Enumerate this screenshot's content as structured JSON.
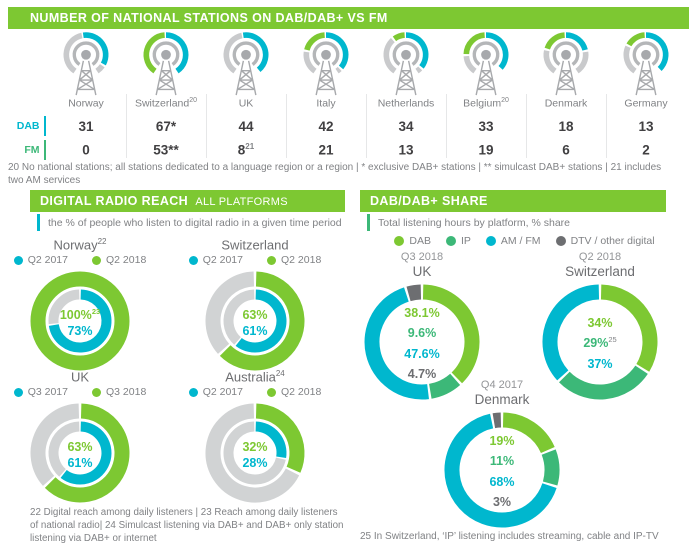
{
  "palette": {
    "green": "#7dc832",
    "green_dark": "#3cb878",
    "teal": "#00b7ce",
    "gray_ring": "#d1d3d4",
    "gray_arc": "#c9cacc",
    "gray_dark": "#6d6e71",
    "tower_gray": "#a7a9ac",
    "text_gray": "#808285",
    "text_dark": "#414042"
  },
  "stations": {
    "title": "NUMBER OF NATIONAL STATIONS ON DAB/DAB+ VS FM",
    "row_labels": {
      "dab": "DAB",
      "fm": "FM"
    },
    "countries": [
      {
        "name": "Norway",
        "sup": "",
        "dab": "31",
        "fm": "0",
        "fm_sup": "",
        "arcs": [
          [
            "gray_arc",
            214,
            348
          ],
          [
            "teal",
            352,
            118
          ],
          [
            "gray_arc",
            124,
            146
          ]
        ]
      },
      {
        "name": "Switzerland",
        "sup": "20",
        "dab": "67*",
        "fm": "53**",
        "fm_sup": "",
        "arcs": [
          [
            "green",
            214,
            356
          ],
          [
            "teal",
            0,
            146
          ]
        ]
      },
      {
        "name": "UK",
        "sup": "",
        "dab": "44",
        "fm": "8",
        "fm_sup": "21",
        "arcs": [
          [
            "gray_arc",
            214,
            348
          ],
          [
            "teal",
            352,
            140
          ]
        ]
      },
      {
        "name": "Italy",
        "sup": "",
        "dab": "42",
        "fm": "21",
        "fm_sup": "",
        "arcs": [
          [
            "gray_arc",
            214,
            278
          ],
          [
            "green",
            284,
            356
          ],
          [
            "teal",
            0,
            130
          ],
          [
            "gray_arc",
            136,
            146
          ]
        ]
      },
      {
        "name": "Netherlands",
        "sup": "",
        "dab": "34",
        "fm": "13",
        "fm_sup": "",
        "arcs": [
          [
            "gray_arc",
            214,
            318
          ],
          [
            "green",
            324,
            356
          ],
          [
            "teal",
            0,
            128
          ],
          [
            "gray_arc",
            134,
            146
          ]
        ]
      },
      {
        "name": "Belgium",
        "sup": "20",
        "dab": "33",
        "fm": "19",
        "fm_sup": "",
        "arcs": [
          [
            "gray_arc",
            214,
            266
          ],
          [
            "green",
            272,
            356
          ],
          [
            "teal",
            0,
            132
          ]
        ]
      },
      {
        "name": "Denmark",
        "sup": "",
        "dab": "18",
        "fm": "6",
        "fm_sup": "",
        "arcs": [
          [
            "gray_arc",
            214,
            282
          ],
          [
            "green",
            288,
            356
          ],
          [
            "teal",
            0,
            76
          ],
          [
            "gray_arc",
            82,
            146
          ]
        ]
      },
      {
        "name": "Germany",
        "sup": "",
        "dab": "13",
        "fm": "2",
        "fm_sup": "",
        "arcs": [
          [
            "gray_arc",
            214,
            294
          ],
          [
            "green",
            300,
            356
          ],
          [
            "teal",
            0,
            136
          ]
        ]
      }
    ],
    "footnote": "20 No national stations; all stations dedicated to a language region or a region | * exclusive DAB+ stations | ** simulcast DAB+ stations | 21 includes two AM services"
  },
  "reach": {
    "title_strong": "DIGITAL RADIO REACH",
    "title_light": "ALL PLATFORMS",
    "subtitle": "the % of people who listen to digital radio in a given time period",
    "charts": [
      {
        "country": "Norway",
        "sup": "22",
        "legend": [
          "Q2 2017",
          "Q2 2018"
        ],
        "curr": {
          "label": "100%",
          "sup": "23",
          "value": 100
        },
        "prev": {
          "label": "73%",
          "value": 73
        }
      },
      {
        "country": "Switzerland",
        "sup": "",
        "legend": [
          "Q2 2017",
          "Q2 2018"
        ],
        "curr": {
          "label": "63%",
          "sup": "",
          "value": 63
        },
        "prev": {
          "label": "61%",
          "value": 61
        }
      },
      {
        "country": "UK",
        "sup": "",
        "legend": [
          "Q3 2017",
          "Q3 2018"
        ],
        "curr": {
          "label": "63%",
          "sup": "",
          "value": 63
        },
        "prev": {
          "label": "61%",
          "value": 61
        }
      },
      {
        "country": "Australia",
        "sup": "24",
        "legend": [
          "Q2 2017",
          "Q2 2018"
        ],
        "curr": {
          "label": "32%",
          "sup": "",
          "value": 32
        },
        "prev": {
          "label": "28%",
          "value": 28
        }
      }
    ],
    "footnote": "22 Digital reach among daily listeners | 23 Reach among daily listeners of national radio| 24 Simulcast listening via DAB+ and DAB+ only station listening via DAB+ or internet"
  },
  "share": {
    "title": "DAB/DAB+ SHARE",
    "subtitle": "Total listening hours by platform, % share",
    "legend": [
      {
        "label": "DAB",
        "color": "green"
      },
      {
        "label": "IP",
        "color": "green-dark"
      },
      {
        "label": "AM / FM",
        "color": "teal"
      },
      {
        "label": "DTV / other digital",
        "color": "gray"
      }
    ],
    "charts": [
      {
        "period": "Q3 2018",
        "country": "UK",
        "values": [
          {
            "key": "dab",
            "label": "38.1%",
            "sup": "",
            "value": 38.1
          },
          {
            "key": "ip",
            "label": "9.6%",
            "sup": "",
            "value": 9.6
          },
          {
            "key": "amfm",
            "label": "47.6%",
            "sup": "",
            "value": 47.6
          },
          {
            "key": "dtv",
            "label": "4.7%",
            "sup": "",
            "value": 4.7
          }
        ]
      },
      {
        "period": "Q2 2018",
        "country": "Switzerland",
        "values": [
          {
            "key": "dab",
            "label": "34%",
            "sup": "",
            "value": 34
          },
          {
            "key": "ip",
            "label": "29%",
            "sup": "25",
            "value": 29
          },
          {
            "key": "amfm",
            "label": "37%",
            "sup": "",
            "value": 37
          }
        ]
      },
      {
        "period": "Q4 2017",
        "country": "Denmark",
        "values": [
          {
            "key": "dab",
            "label": "19%",
            "sup": "",
            "value": 19
          },
          {
            "key": "ip",
            "label": "11%",
            "sup": "",
            "value": 11
          },
          {
            "key": "amfm",
            "label": "68%",
            "sup": "",
            "value": 68
          },
          {
            "key": "dtv",
            "label": "3%",
            "sup": "",
            "value": 3
          }
        ]
      }
    ],
    "footnote": "25 In Switzerland, ‘IP’ listening includes streaming, cable and IP-TV"
  },
  "chart_data": [
    {
      "type": "table",
      "title": "NUMBER OF NATIONAL STATIONS ON DAB/DAB+ VS FM",
      "columns": [
        "Norway",
        "Switzerland",
        "UK",
        "Italy",
        "Netherlands",
        "Belgium",
        "Denmark",
        "Germany"
      ],
      "rows": [
        {
          "label": "DAB",
          "values": [
            31,
            67,
            44,
            42,
            34,
            33,
            18,
            13
          ]
        },
        {
          "label": "FM",
          "values": [
            0,
            53,
            8,
            21,
            13,
            19,
            6,
            2
          ]
        }
      ]
    },
    {
      "type": "pie",
      "subtype": "double-donut",
      "group": "DIGITAL RADIO REACH",
      "title": "Norway",
      "series": [
        {
          "name": "Q2 2018",
          "value": 100
        },
        {
          "name": "Q2 2017",
          "value": 73
        }
      ],
      "unit": "%"
    },
    {
      "type": "pie",
      "subtype": "double-donut",
      "group": "DIGITAL RADIO REACH",
      "title": "Switzerland",
      "series": [
        {
          "name": "Q2 2018",
          "value": 63
        },
        {
          "name": "Q2 2017",
          "value": 61
        }
      ],
      "unit": "%"
    },
    {
      "type": "pie",
      "subtype": "double-donut",
      "group": "DIGITAL RADIO REACH",
      "title": "UK",
      "series": [
        {
          "name": "Q3 2018",
          "value": 63
        },
        {
          "name": "Q3 2017",
          "value": 61
        }
      ],
      "unit": "%"
    },
    {
      "type": "pie",
      "subtype": "double-donut",
      "group": "DIGITAL RADIO REACH",
      "title": "Australia",
      "series": [
        {
          "name": "Q2 2018",
          "value": 32
        },
        {
          "name": "Q2 2017",
          "value": 28
        }
      ],
      "unit": "%"
    },
    {
      "type": "pie",
      "subtype": "donut",
      "group": "DAB/DAB+ SHARE",
      "title": "UK (Q3 2018)",
      "series": [
        {
          "name": "DAB",
          "value": 38.1
        },
        {
          "name": "IP",
          "value": 9.6
        },
        {
          "name": "AM / FM",
          "value": 47.6
        },
        {
          "name": "DTV / other digital",
          "value": 4.7
        }
      ],
      "unit": "%"
    },
    {
      "type": "pie",
      "subtype": "donut",
      "group": "DAB/DAB+ SHARE",
      "title": "Switzerland (Q2 2018)",
      "series": [
        {
          "name": "DAB",
          "value": 34
        },
        {
          "name": "IP",
          "value": 29
        },
        {
          "name": "AM / FM",
          "value": 37
        }
      ],
      "unit": "%"
    },
    {
      "type": "pie",
      "subtype": "donut",
      "group": "DAB/DAB+ SHARE",
      "title": "Denmark (Q4 2017)",
      "series": [
        {
          "name": "DAB",
          "value": 19
        },
        {
          "name": "IP",
          "value": 11
        },
        {
          "name": "AM / FM",
          "value": 68
        },
        {
          "name": "DTV / other digital",
          "value": 3
        }
      ],
      "unit": "%"
    }
  ]
}
